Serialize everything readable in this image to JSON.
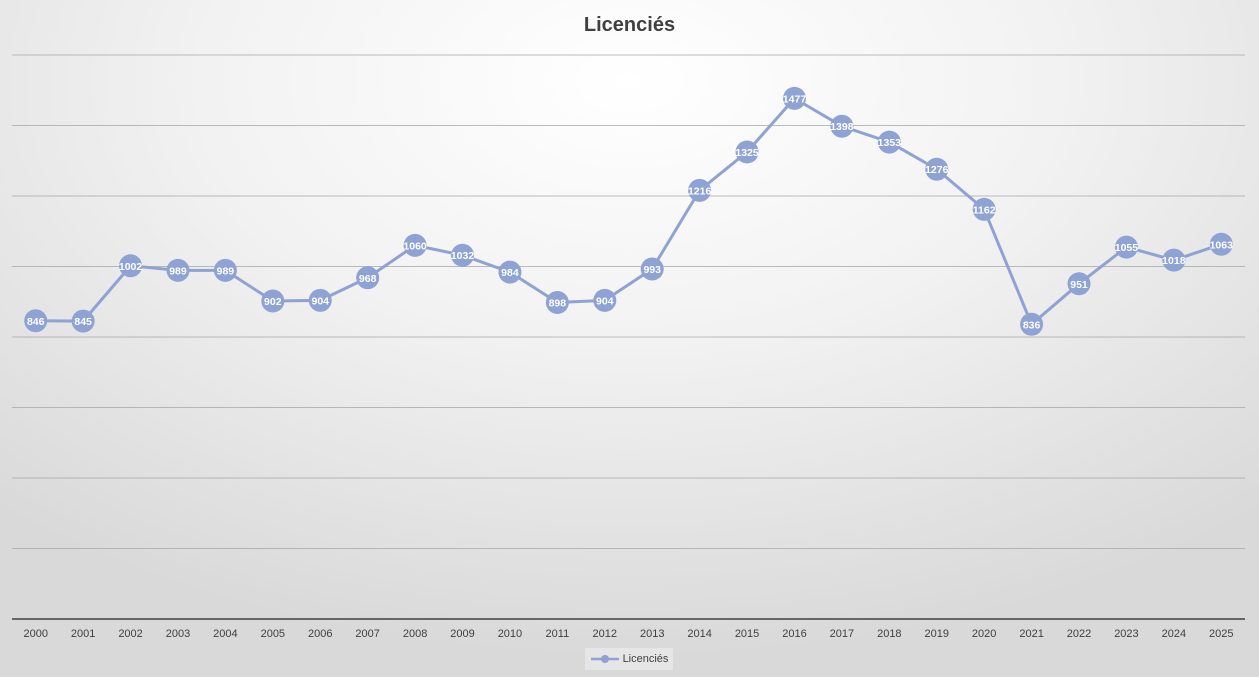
{
  "chart_data": {
    "type": "line",
    "title": "Licenciés",
    "xlabel": "",
    "ylabel": "",
    "categories": [
      "2000",
      "2001",
      "2002",
      "2003",
      "2004",
      "2005",
      "2006",
      "2007",
      "2008",
      "2009",
      "2010",
      "2011",
      "2012",
      "2013",
      "2014",
      "2015",
      "2016",
      "2017",
      "2018",
      "2019",
      "2020",
      "2021",
      "2022",
      "2023",
      "2024",
      "2025"
    ],
    "series": [
      {
        "name": "Licenciés",
        "values": [
          846,
          845,
          1002,
          989,
          989,
          902,
          904,
          968,
          1060,
          1032,
          984,
          898,
          904,
          993,
          1216,
          1325,
          1477,
          1398,
          1353,
          1276,
          1162,
          836,
          951,
          1055,
          1018,
          1063
        ]
      }
    ],
    "ylim": [
      0,
      1600
    ],
    "y_tick_labels_visible": false,
    "grid": true,
    "data_labels": true,
    "legend_position": "bottom",
    "colors": {
      "series": "#8fa2d4",
      "gridline": "#a6a6a6",
      "axis": "#404040",
      "title": "#404040"
    }
  }
}
